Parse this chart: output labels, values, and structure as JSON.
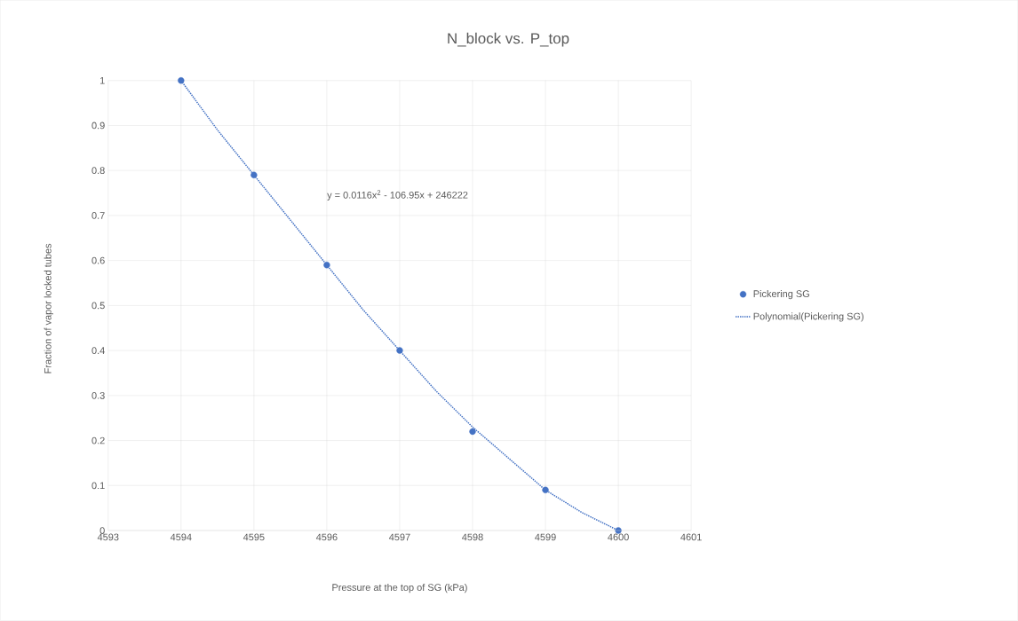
{
  "chart_data": {
    "type": "scatter",
    "title": "N_block vs. P_top",
    "xlabel": "Pressure at the top of SG (kPa)",
    "ylabel": "Fraction of vapor locked tubes",
    "x": [
      4594,
      4595,
      4596,
      4597,
      4598,
      4599,
      4600
    ],
    "series": [
      {
        "name": "Pickering SG",
        "color": "#4472c4",
        "marker": "circle",
        "values": [
          1,
          0.79,
          0.59,
          0.4,
          0.22,
          0.09,
          0
        ]
      },
      {
        "name": "Polynomial(Pickering SG)",
        "type": "line",
        "color": "#4472c4",
        "line_style": "dotted",
        "marker": "none",
        "x": [
          4594,
          4594.5,
          4595,
          4595.5,
          4596,
          4596.5,
          4597,
          4597.5,
          4598,
          4598.5,
          4599,
          4599.5,
          4600
        ],
        "values": [
          1,
          0.89,
          0.79,
          0.69,
          0.59,
          0.49,
          0.4,
          0.31,
          0.23,
          0.16,
          0.09,
          0.04,
          0
        ]
      }
    ],
    "annotations": [
      "y = 0.0116x$^{2}$ - 106.95x + 246222"
    ],
    "xlim": [
      4593,
      4601
    ],
    "xticks": [
      4593,
      4594,
      4595,
      4596,
      4597,
      4598,
      4599,
      4600,
      4601
    ],
    "ylim": [
      0,
      1
    ],
    "yticks": [
      0,
      0.1,
      0.2,
      0.3,
      0.4,
      0.5,
      0.6,
      0.7,
      0.8,
      0.9,
      1
    ],
    "grid": true,
    "legend": "right"
  }
}
